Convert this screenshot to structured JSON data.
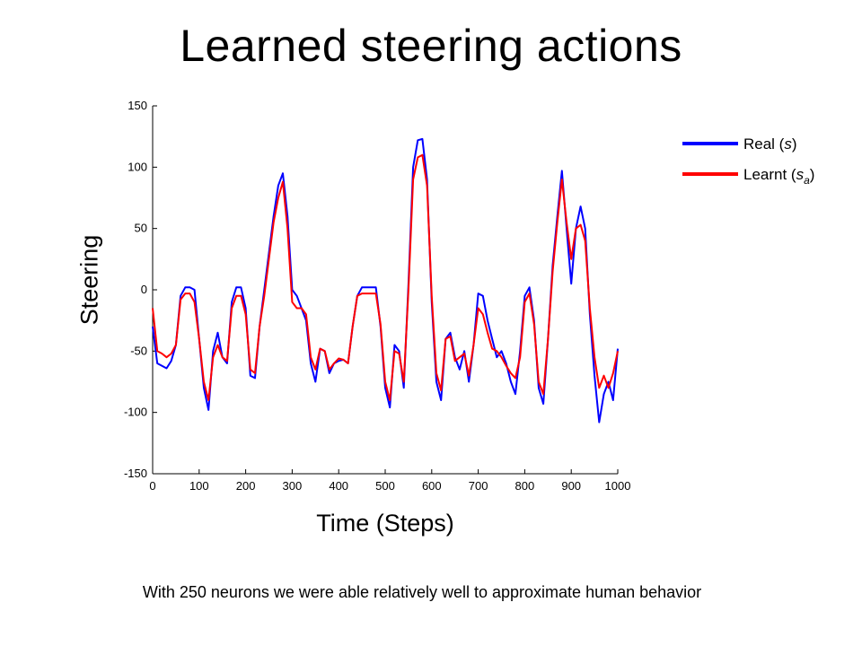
{
  "page": {
    "title": "Learned steering actions",
    "caption": "With 250 neurons we were able relatively well to approximate human behavior"
  },
  "chart_data": {
    "type": "line",
    "xlabel": "Time (Steps)",
    "ylabel": "Steering",
    "xlim": [
      0,
      1000
    ],
    "ylim": [
      -150,
      150
    ],
    "xticks": [
      0,
      100,
      200,
      300,
      400,
      500,
      600,
      700,
      800,
      900,
      1000
    ],
    "yticks": [
      -150,
      -100,
      -50,
      0,
      50,
      100,
      150
    ],
    "grid": false,
    "legend_position": "top-right",
    "x": [
      0,
      10,
      20,
      30,
      40,
      50,
      60,
      70,
      80,
      90,
      100,
      110,
      120,
      130,
      140,
      150,
      160,
      170,
      180,
      190,
      200,
      210,
      220,
      230,
      240,
      250,
      260,
      270,
      280,
      290,
      300,
      310,
      320,
      330,
      340,
      350,
      360,
      370,
      380,
      390,
      400,
      410,
      420,
      430,
      440,
      450,
      460,
      470,
      480,
      490,
      500,
      510,
      520,
      530,
      540,
      550,
      560,
      570,
      580,
      590,
      600,
      610,
      620,
      630,
      640,
      650,
      660,
      670,
      680,
      690,
      700,
      710,
      720,
      730,
      740,
      750,
      760,
      770,
      780,
      790,
      800,
      810,
      820,
      830,
      840,
      850,
      860,
      870,
      880,
      890,
      900,
      910,
      920,
      930,
      940,
      950,
      960,
      970,
      980,
      990,
      1000
    ],
    "series": [
      {
        "name": "Real (s)",
        "color": "#0000ff",
        "values": [
          -30,
          -60,
          -62,
          -64,
          -58,
          -45,
          -5,
          2,
          2,
          0,
          -40,
          -80,
          -98,
          -50,
          -35,
          -55,
          -60,
          -10,
          2,
          2,
          -15,
          -70,
          -72,
          -30,
          0,
          30,
          60,
          85,
          95,
          60,
          0,
          -5,
          -15,
          -25,
          -60,
          -75,
          -48,
          -50,
          -68,
          -60,
          -58,
          -57,
          -60,
          -30,
          -5,
          2,
          2,
          2,
          2,
          -30,
          -80,
          -96,
          -45,
          -50,
          -80,
          5,
          100,
          122,
          123,
          90,
          -10,
          -75,
          -90,
          -40,
          -35,
          -55,
          -65,
          -50,
          -75,
          -45,
          -3,
          -5,
          -25,
          -40,
          -55,
          -50,
          -60,
          -75,
          -85,
          -50,
          -5,
          2,
          -25,
          -80,
          -93,
          -40,
          20,
          60,
          97,
          50,
          5,
          50,
          68,
          50,
          -20,
          -70,
          -108,
          -85,
          -75,
          -90,
          -48
        ]
      },
      {
        "name": "Learnt (s_a)",
        "color": "#ff0000",
        "values": [
          -15,
          -50,
          -52,
          -55,
          -52,
          -45,
          -8,
          -3,
          -3,
          -10,
          -40,
          -75,
          -90,
          -55,
          -45,
          -55,
          -58,
          -15,
          -5,
          -5,
          -20,
          -65,
          -68,
          -30,
          -5,
          25,
          55,
          75,
          88,
          50,
          -10,
          -15,
          -15,
          -20,
          -55,
          -65,
          -48,
          -50,
          -65,
          -60,
          -56,
          -57,
          -60,
          -30,
          -5,
          -3,
          -3,
          -3,
          -3,
          -28,
          -75,
          -90,
          -50,
          -52,
          -75,
          0,
          90,
          108,
          110,
          85,
          -5,
          -68,
          -82,
          -40,
          -38,
          -58,
          -55,
          -52,
          -70,
          -45,
          -15,
          -20,
          -35,
          -48,
          -50,
          -55,
          -62,
          -68,
          -72,
          -55,
          -10,
          -3,
          -28,
          -75,
          -85,
          -40,
          15,
          55,
          90,
          55,
          25,
          50,
          53,
          40,
          -15,
          -55,
          -80,
          -70,
          -80,
          -68,
          -50
        ]
      }
    ]
  }
}
